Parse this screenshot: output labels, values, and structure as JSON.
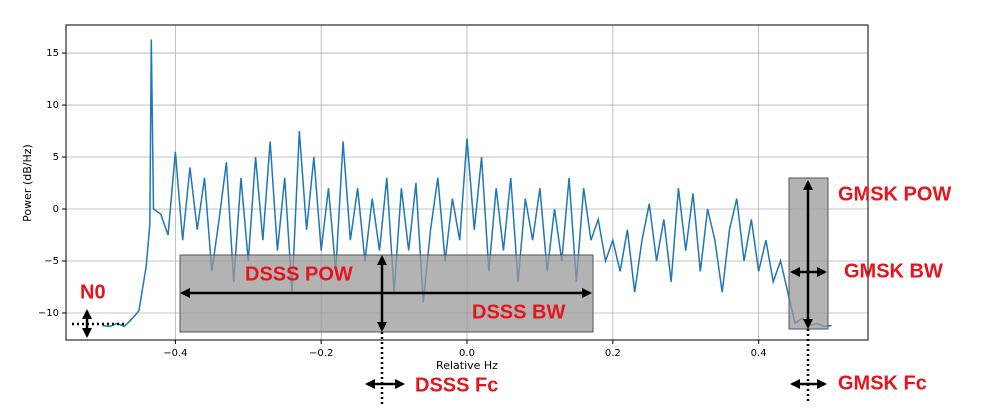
{
  "chart_data": {
    "type": "line",
    "xlabel": "Relative Hz",
    "ylabel": "Power (dB/Hz)",
    "x": [
      -0.5,
      -0.49,
      -0.48,
      -0.47,
      -0.46,
      -0.45,
      -0.44,
      -0.435,
      -0.433,
      -0.43,
      -0.42,
      -0.41,
      -0.4,
      -0.39,
      -0.38,
      -0.37,
      -0.36,
      -0.35,
      -0.34,
      -0.33,
      -0.32,
      -0.31,
      -0.3,
      -0.29,
      -0.28,
      -0.27,
      -0.26,
      -0.25,
      -0.24,
      -0.23,
      -0.22,
      -0.21,
      -0.2,
      -0.19,
      -0.18,
      -0.17,
      -0.16,
      -0.15,
      -0.14,
      -0.13,
      -0.12,
      -0.11,
      -0.1,
      -0.09,
      -0.08,
      -0.07,
      -0.06,
      -0.05,
      -0.04,
      -0.03,
      -0.02,
      -0.01,
      0.0,
      0.01,
      0.02,
      0.03,
      0.04,
      0.05,
      0.06,
      0.07,
      0.08,
      0.09,
      0.1,
      0.11,
      0.12,
      0.13,
      0.14,
      0.15,
      0.16,
      0.17,
      0.18,
      0.19,
      0.2,
      0.21,
      0.22,
      0.23,
      0.24,
      0.25,
      0.26,
      0.27,
      0.28,
      0.29,
      0.3,
      0.31,
      0.32,
      0.33,
      0.34,
      0.35,
      0.36,
      0.37,
      0.38,
      0.39,
      0.4,
      0.41,
      0.42,
      0.43,
      0.44,
      0.45,
      0.46,
      0.47,
      0.48,
      0.49,
      0.5
    ],
    "series": [
      {
        "color": "#1f77b4",
        "values": [
          -11.2,
          -11.3,
          -11.0,
          -11.3,
          -10.6,
          -9.8,
          -5.5,
          -1.5,
          16.3,
          0.0,
          -0.5,
          -2.5,
          5.5,
          -3,
          4,
          -2,
          3,
          -6,
          -1,
          4.5,
          -7,
          3,
          -5,
          5,
          -3,
          6.5,
          -4,
          3,
          -8,
          7.5,
          -2,
          5,
          -4,
          2,
          -6,
          6.5,
          -3,
          2,
          -5,
          1,
          -4,
          3,
          -8,
          2,
          -4,
          2.5,
          -9,
          -2,
          3,
          -5,
          1,
          -3,
          6.8,
          -2,
          5,
          -6,
          2,
          -4,
          3,
          -7,
          1,
          -3,
          2,
          -6,
          0,
          -5,
          3,
          -7,
          2,
          -3,
          -1,
          -5,
          -3,
          -6,
          -2,
          -8,
          -3,
          0.5,
          -5,
          -1,
          -7,
          2,
          -4,
          1.5,
          -6,
          0,
          -3,
          -8,
          -2,
          1,
          -5,
          -1,
          -6,
          -3,
          -7,
          -5,
          -8,
          -11,
          -10.5,
          -11.2,
          -11,
          -11.3,
          -11.2
        ]
      }
    ],
    "xlim": [
      -0.55,
      0.55
    ],
    "ylim": [
      -12.6,
      17.7
    ],
    "xticks": [
      {
        "value": -0.4,
        "label": "−0.4"
      },
      {
        "value": -0.2,
        "label": "−0.2"
      },
      {
        "value": 0.0,
        "label": "0.0"
      },
      {
        "value": 0.2,
        "label": "0.2"
      },
      {
        "value": 0.4,
        "label": "0.4"
      }
    ],
    "yticks": [
      {
        "value": -10,
        "label": "−10"
      },
      {
        "value": -5,
        "label": "−5"
      },
      0,
      5,
      10,
      15
    ],
    "grid": true,
    "annotations": [
      "N0",
      "DSSS POW",
      "DSSS BW",
      "DSSS Fc",
      "GMSK POW",
      "GMSK BW",
      "GMSK Fc"
    ]
  }
}
